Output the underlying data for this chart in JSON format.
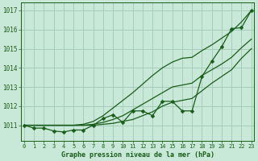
{
  "x": [
    0,
    1,
    2,
    3,
    4,
    5,
    6,
    7,
    8,
    9,
    10,
    11,
    12,
    13,
    14,
    15,
    16,
    17,
    18,
    19,
    20,
    21,
    22,
    23
  ],
  "line_wiggly": [
    1011.0,
    1010.85,
    1010.85,
    1010.7,
    1010.65,
    1010.75,
    1010.75,
    1011.0,
    1011.35,
    1011.55,
    1011.15,
    1011.75,
    1011.75,
    1011.5,
    1012.25,
    1012.25,
    1011.75,
    1011.75,
    1013.55,
    1014.35,
    1015.1,
    1016.05,
    1016.1,
    1017.0
  ],
  "line_smooth1": [
    1011.0,
    1011.0,
    1011.0,
    1011.0,
    1011.0,
    1011.0,
    1011.0,
    1011.0,
    1011.05,
    1011.1,
    1011.2,
    1011.3,
    1011.5,
    1011.7,
    1012.0,
    1012.2,
    1012.3,
    1012.4,
    1012.8,
    1013.2,
    1013.55,
    1013.9,
    1014.5,
    1015.0
  ],
  "line_smooth2": [
    1011.0,
    1011.0,
    1011.0,
    1011.0,
    1011.0,
    1011.0,
    1011.0,
    1011.05,
    1011.15,
    1011.3,
    1011.5,
    1011.8,
    1012.1,
    1012.4,
    1012.7,
    1013.0,
    1013.1,
    1013.2,
    1013.6,
    1013.9,
    1014.2,
    1014.55,
    1015.05,
    1015.5
  ],
  "line_upper": [
    1011.0,
    1011.0,
    1011.0,
    1011.0,
    1011.0,
    1011.0,
    1011.05,
    1011.2,
    1011.5,
    1011.9,
    1012.3,
    1012.7,
    1013.15,
    1013.6,
    1014.0,
    1014.3,
    1014.5,
    1014.55,
    1014.9,
    1015.2,
    1015.55,
    1015.9,
    1016.4,
    1017.0
  ],
  "bg_color": "#c8e8d8",
  "grid_color": "#a0c8b4",
  "line_color": "#1a5c1a",
  "text_color": "#1a5c1a",
  "title": "Graphe pression niveau de la mer (hPa)",
  "yticks": [
    1011,
    1012,
    1013,
    1014,
    1015,
    1016,
    1017
  ],
  "ylim": [
    1010.2,
    1017.4
  ],
  "xlim": [
    -0.3,
    23.3
  ]
}
